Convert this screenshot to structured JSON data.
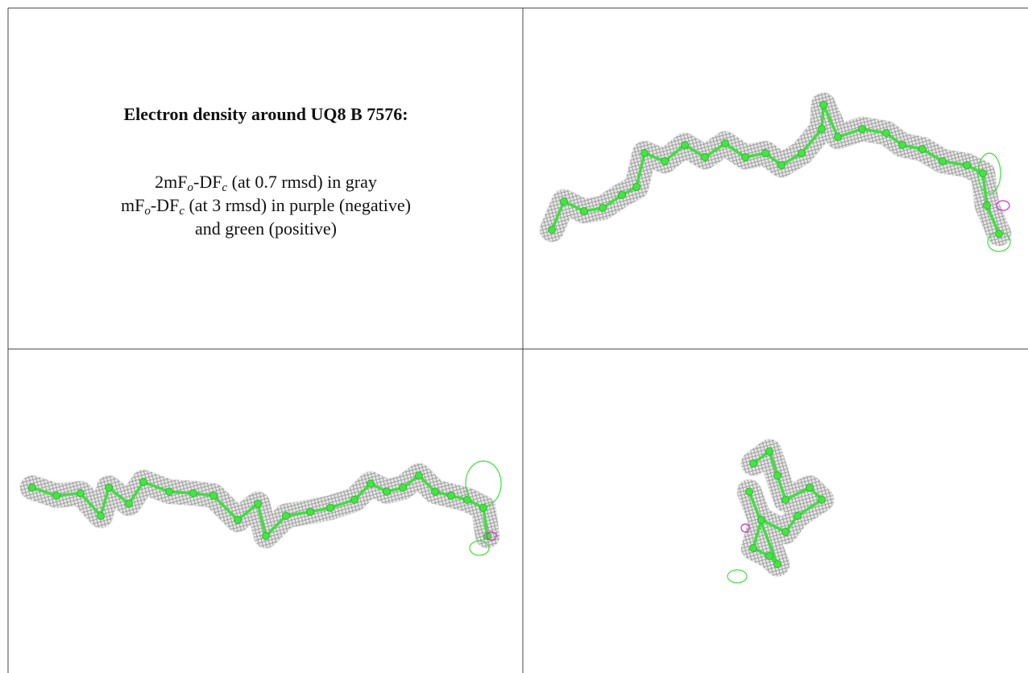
{
  "caption": {
    "title": "Electron density around UQ8 B 7576:",
    "lines": [
      [
        "2mF",
        "o",
        "-DF",
        "c",
        " (at 0.7 rmsd) in gray"
      ],
      [
        "mF",
        "o",
        "-DF",
        "c",
        " (at 3 rmsd) in purple (negative)"
      ],
      [
        "and green (positive)"
      ]
    ]
  }
}
